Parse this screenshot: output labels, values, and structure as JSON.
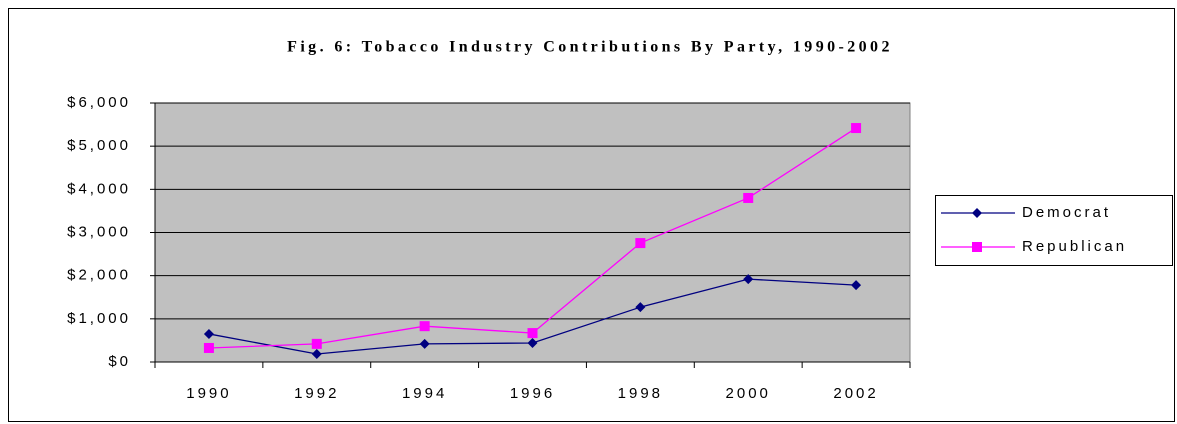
{
  "chart_data": {
    "type": "line",
    "title": "Fig. 6:  Tobacco Industry Contributions By Party, 1990-2002",
    "categories": [
      "1990",
      "1992",
      "1994",
      "1996",
      "1998",
      "2000",
      "2002"
    ],
    "series": [
      {
        "name": "Democrat",
        "color": "#000080",
        "marker": "diamond",
        "values": [
          650,
          185,
          420,
          440,
          1270,
          1920,
          1780
        ]
      },
      {
        "name": "Republican",
        "color": "#ff00ff",
        "marker": "square",
        "values": [
          325,
          420,
          830,
          670,
          2755,
          3800,
          5420
        ]
      }
    ],
    "ylim": [
      0,
      6000
    ],
    "yticks": [
      {
        "value": 0,
        "label": "$0"
      },
      {
        "value": 1000,
        "label": "$1,000"
      },
      {
        "value": 2000,
        "label": "$2,000"
      },
      {
        "value": 3000,
        "label": "$3,000"
      },
      {
        "value": 4000,
        "label": "$4,000"
      },
      {
        "value": 5000,
        "label": "$5,000"
      },
      {
        "value": 6000,
        "label": "$6,000"
      }
    ],
    "grid": true,
    "legend": "right",
    "plot_background": "#c0c0c0"
  }
}
